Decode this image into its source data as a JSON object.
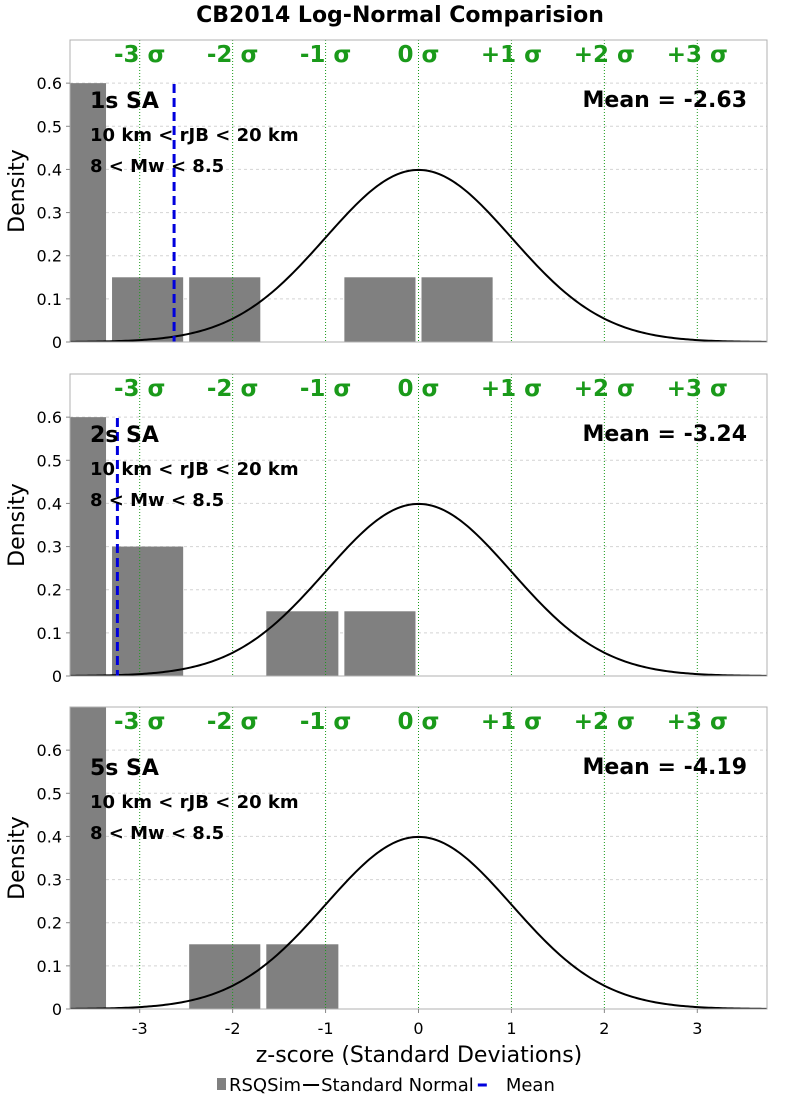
{
  "chart_data": {
    "type": "bar",
    "title": "CB2014 Log-Normal Comparision",
    "xlabel": "z-score (Standard Deviations)",
    "ylabel": "Density",
    "xlim": [
      -3.75,
      3.75
    ],
    "x_ticks": [
      -3,
      -2,
      -1,
      0,
      1,
      2,
      3
    ],
    "x_tick_labels": [
      "-3",
      "-2",
      "-1",
      "0",
      "1",
      "2",
      "3"
    ],
    "sigma_lines": [
      -3,
      -2,
      -1,
      0,
      1,
      2,
      3
    ],
    "sigma_labels": [
      "-3 σ",
      "-2 σ",
      "-1 σ",
      "0 σ",
      "+1 σ",
      "+2 σ",
      "+3 σ"
    ],
    "legend": {
      "placement": "bottom-center",
      "items": [
        {
          "name": "RSQSim",
          "symbol": "bar",
          "color": "#808080"
        },
        {
          "name": "Standard Normal",
          "symbol": "line",
          "color": "#000000"
        },
        {
          "name": "Mean",
          "symbol": "dashed-line",
          "color": "#0000dd"
        }
      ]
    },
    "panels": [
      {
        "label": "1s SA",
        "distance_text": "10 km < rJB < 20 km",
        "magnitude_text": "8 < Mw < 8.5",
        "mean_text": "Mean = -2.63",
        "mean": -2.63,
        "ylim": [
          0,
          0.7
        ],
        "y_ticks": [
          0,
          0.1,
          0.2,
          0.3,
          0.4,
          0.5,
          0.6
        ],
        "y_tick_labels": [
          "0",
          "0.1",
          "0.2",
          "0.3",
          "0.4",
          "0.5",
          "0.6"
        ],
        "bars": [
          {
            "x0": -3.75,
            "x1": -3.33,
            "value": 0.6
          },
          {
            "x0": -3.33,
            "x1": -2.5,
            "value": 0.15
          },
          {
            "x0": -2.5,
            "x1": -1.67,
            "value": 0.15
          },
          {
            "x0": -0.83,
            "x1": 0.0,
            "value": 0.15
          },
          {
            "x0": 0.0,
            "x1": 0.83,
            "value": 0.15
          }
        ]
      },
      {
        "label": "2s SA",
        "distance_text": "10 km < rJB < 20 km",
        "magnitude_text": "8 < Mw < 8.5",
        "mean_text": "Mean = -3.24",
        "mean": -3.24,
        "ylim": [
          0,
          0.7
        ],
        "y_ticks": [
          0,
          0.1,
          0.2,
          0.3,
          0.4,
          0.5,
          0.6
        ],
        "y_tick_labels": [
          "0",
          "0.1",
          "0.2",
          "0.3",
          "0.4",
          "0.5",
          "0.6"
        ],
        "bars": [
          {
            "x0": -3.75,
            "x1": -3.33,
            "value": 0.6
          },
          {
            "x0": -3.33,
            "x1": -2.5,
            "value": 0.3
          },
          {
            "x0": -1.67,
            "x1": -0.83,
            "value": 0.15
          },
          {
            "x0": -0.83,
            "x1": 0.0,
            "value": 0.15
          }
        ]
      },
      {
        "label": "5s SA",
        "distance_text": "10 km < rJB < 20 km",
        "magnitude_text": "8 < Mw < 8.5",
        "mean_text": "Mean = -4.19",
        "mean": -4.19,
        "ylim": [
          0,
          0.7
        ],
        "y_ticks": [
          0,
          0.1,
          0.2,
          0.3,
          0.4,
          0.5,
          0.6
        ],
        "y_tick_labels": [
          "0",
          "0.1",
          "0.2",
          "0.3",
          "0.4",
          "0.5",
          "0.6"
        ],
        "bars": [
          {
            "x0": -3.75,
            "x1": -3.33,
            "value": 0.75
          },
          {
            "x0": -2.5,
            "x1": -1.67,
            "value": 0.15
          },
          {
            "x0": -1.67,
            "x1": -0.83,
            "value": 0.15
          }
        ]
      }
    ]
  }
}
